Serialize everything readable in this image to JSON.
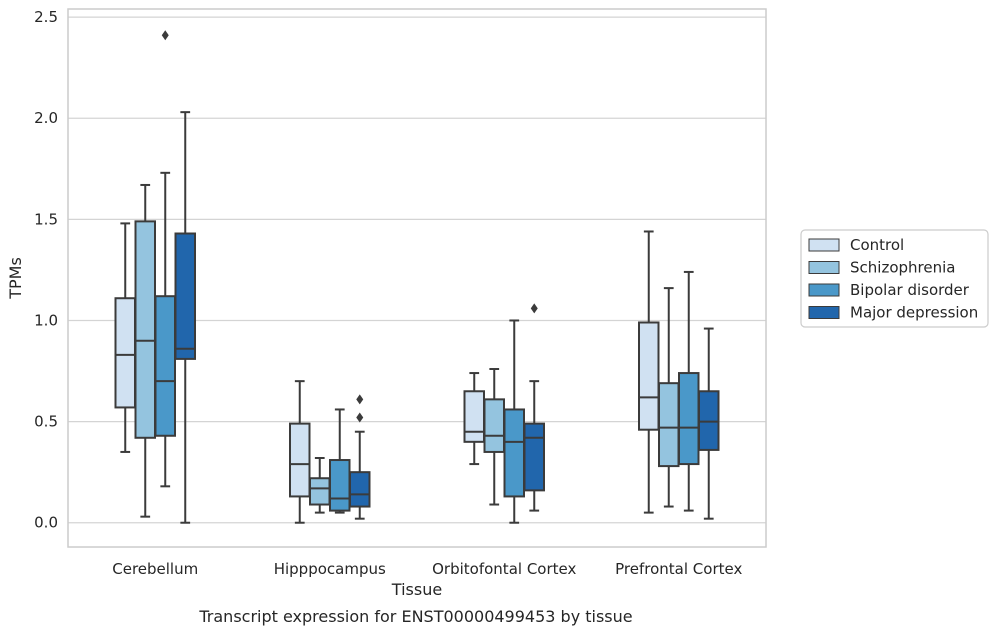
{
  "caption": "Transcript expression for ENST00000499453 by tissue",
  "chart_data": {
    "type": "boxplot",
    "xlabel": "Tissue",
    "ylabel": "TPMs",
    "ylim": [
      -0.12,
      2.54
    ],
    "yticks": [
      "0.0",
      "0.5",
      "1.0",
      "1.5",
      "2.0",
      "2.5"
    ],
    "grid": "horizontal",
    "legend_position": "right",
    "categories": [
      "Cerebellum",
      "Hipppocampus",
      "Orbitofontal Cortex",
      "Prefrontal Cortex"
    ],
    "series": [
      {
        "name": "Control",
        "color": "#d0e1f2",
        "boxes": [
          {
            "whislo": 0.35,
            "q1": 0.57,
            "med": 0.83,
            "q3": 1.11,
            "whishi": 1.48,
            "fliers": []
          },
          {
            "whislo": 0.0,
            "q1": 0.13,
            "med": 0.29,
            "q3": 0.49,
            "whishi": 0.7,
            "fliers": []
          },
          {
            "whislo": 0.29,
            "q1": 0.4,
            "med": 0.45,
            "q3": 0.65,
            "whishi": 0.74,
            "fliers": []
          },
          {
            "whislo": 0.05,
            "q1": 0.46,
            "med": 0.62,
            "q3": 0.99,
            "whishi": 1.44,
            "fliers": []
          }
        ]
      },
      {
        "name": "Schizophrenia",
        "color": "#94c4df",
        "boxes": [
          {
            "whislo": 0.03,
            "q1": 0.42,
            "med": 0.9,
            "q3": 1.49,
            "whishi": 1.67,
            "fliers": []
          },
          {
            "whislo": 0.05,
            "q1": 0.09,
            "med": 0.17,
            "q3": 0.22,
            "whishi": 0.32,
            "fliers": []
          },
          {
            "whislo": 0.09,
            "q1": 0.35,
            "med": 0.43,
            "q3": 0.61,
            "whishi": 0.76,
            "fliers": []
          },
          {
            "whislo": 0.08,
            "q1": 0.28,
            "med": 0.47,
            "q3": 0.69,
            "whishi": 1.16,
            "fliers": []
          }
        ]
      },
      {
        "name": "Bipolar disorder",
        "color": "#4a98c9",
        "boxes": [
          {
            "whislo": 0.18,
            "q1": 0.43,
            "med": 0.7,
            "q3": 1.12,
            "whishi": 1.73,
            "fliers": [
              2.41
            ]
          },
          {
            "whislo": 0.05,
            "q1": 0.06,
            "med": 0.12,
            "q3": 0.31,
            "whishi": 0.56,
            "fliers": []
          },
          {
            "whislo": 0.0,
            "q1": 0.13,
            "med": 0.4,
            "q3": 0.56,
            "whishi": 1.0,
            "fliers": []
          },
          {
            "whislo": 0.06,
            "q1": 0.29,
            "med": 0.47,
            "q3": 0.74,
            "whishi": 1.24,
            "fliers": []
          }
        ]
      },
      {
        "name": "Major depression",
        "color": "#2166ac",
        "boxes": [
          {
            "whislo": 0.0,
            "q1": 0.81,
            "med": 0.86,
            "q3": 1.43,
            "whishi": 2.03,
            "fliers": []
          },
          {
            "whislo": 0.02,
            "q1": 0.08,
            "med": 0.14,
            "q3": 0.25,
            "whishi": 0.45,
            "fliers": [
              0.52,
              0.61
            ]
          },
          {
            "whislo": 0.06,
            "q1": 0.16,
            "med": 0.42,
            "q3": 0.49,
            "whishi": 0.7,
            "fliers": [
              1.06
            ]
          },
          {
            "whislo": 0.02,
            "q1": 0.36,
            "med": 0.5,
            "q3": 0.65,
            "whishi": 0.96,
            "fliers": []
          }
        ]
      }
    ]
  }
}
